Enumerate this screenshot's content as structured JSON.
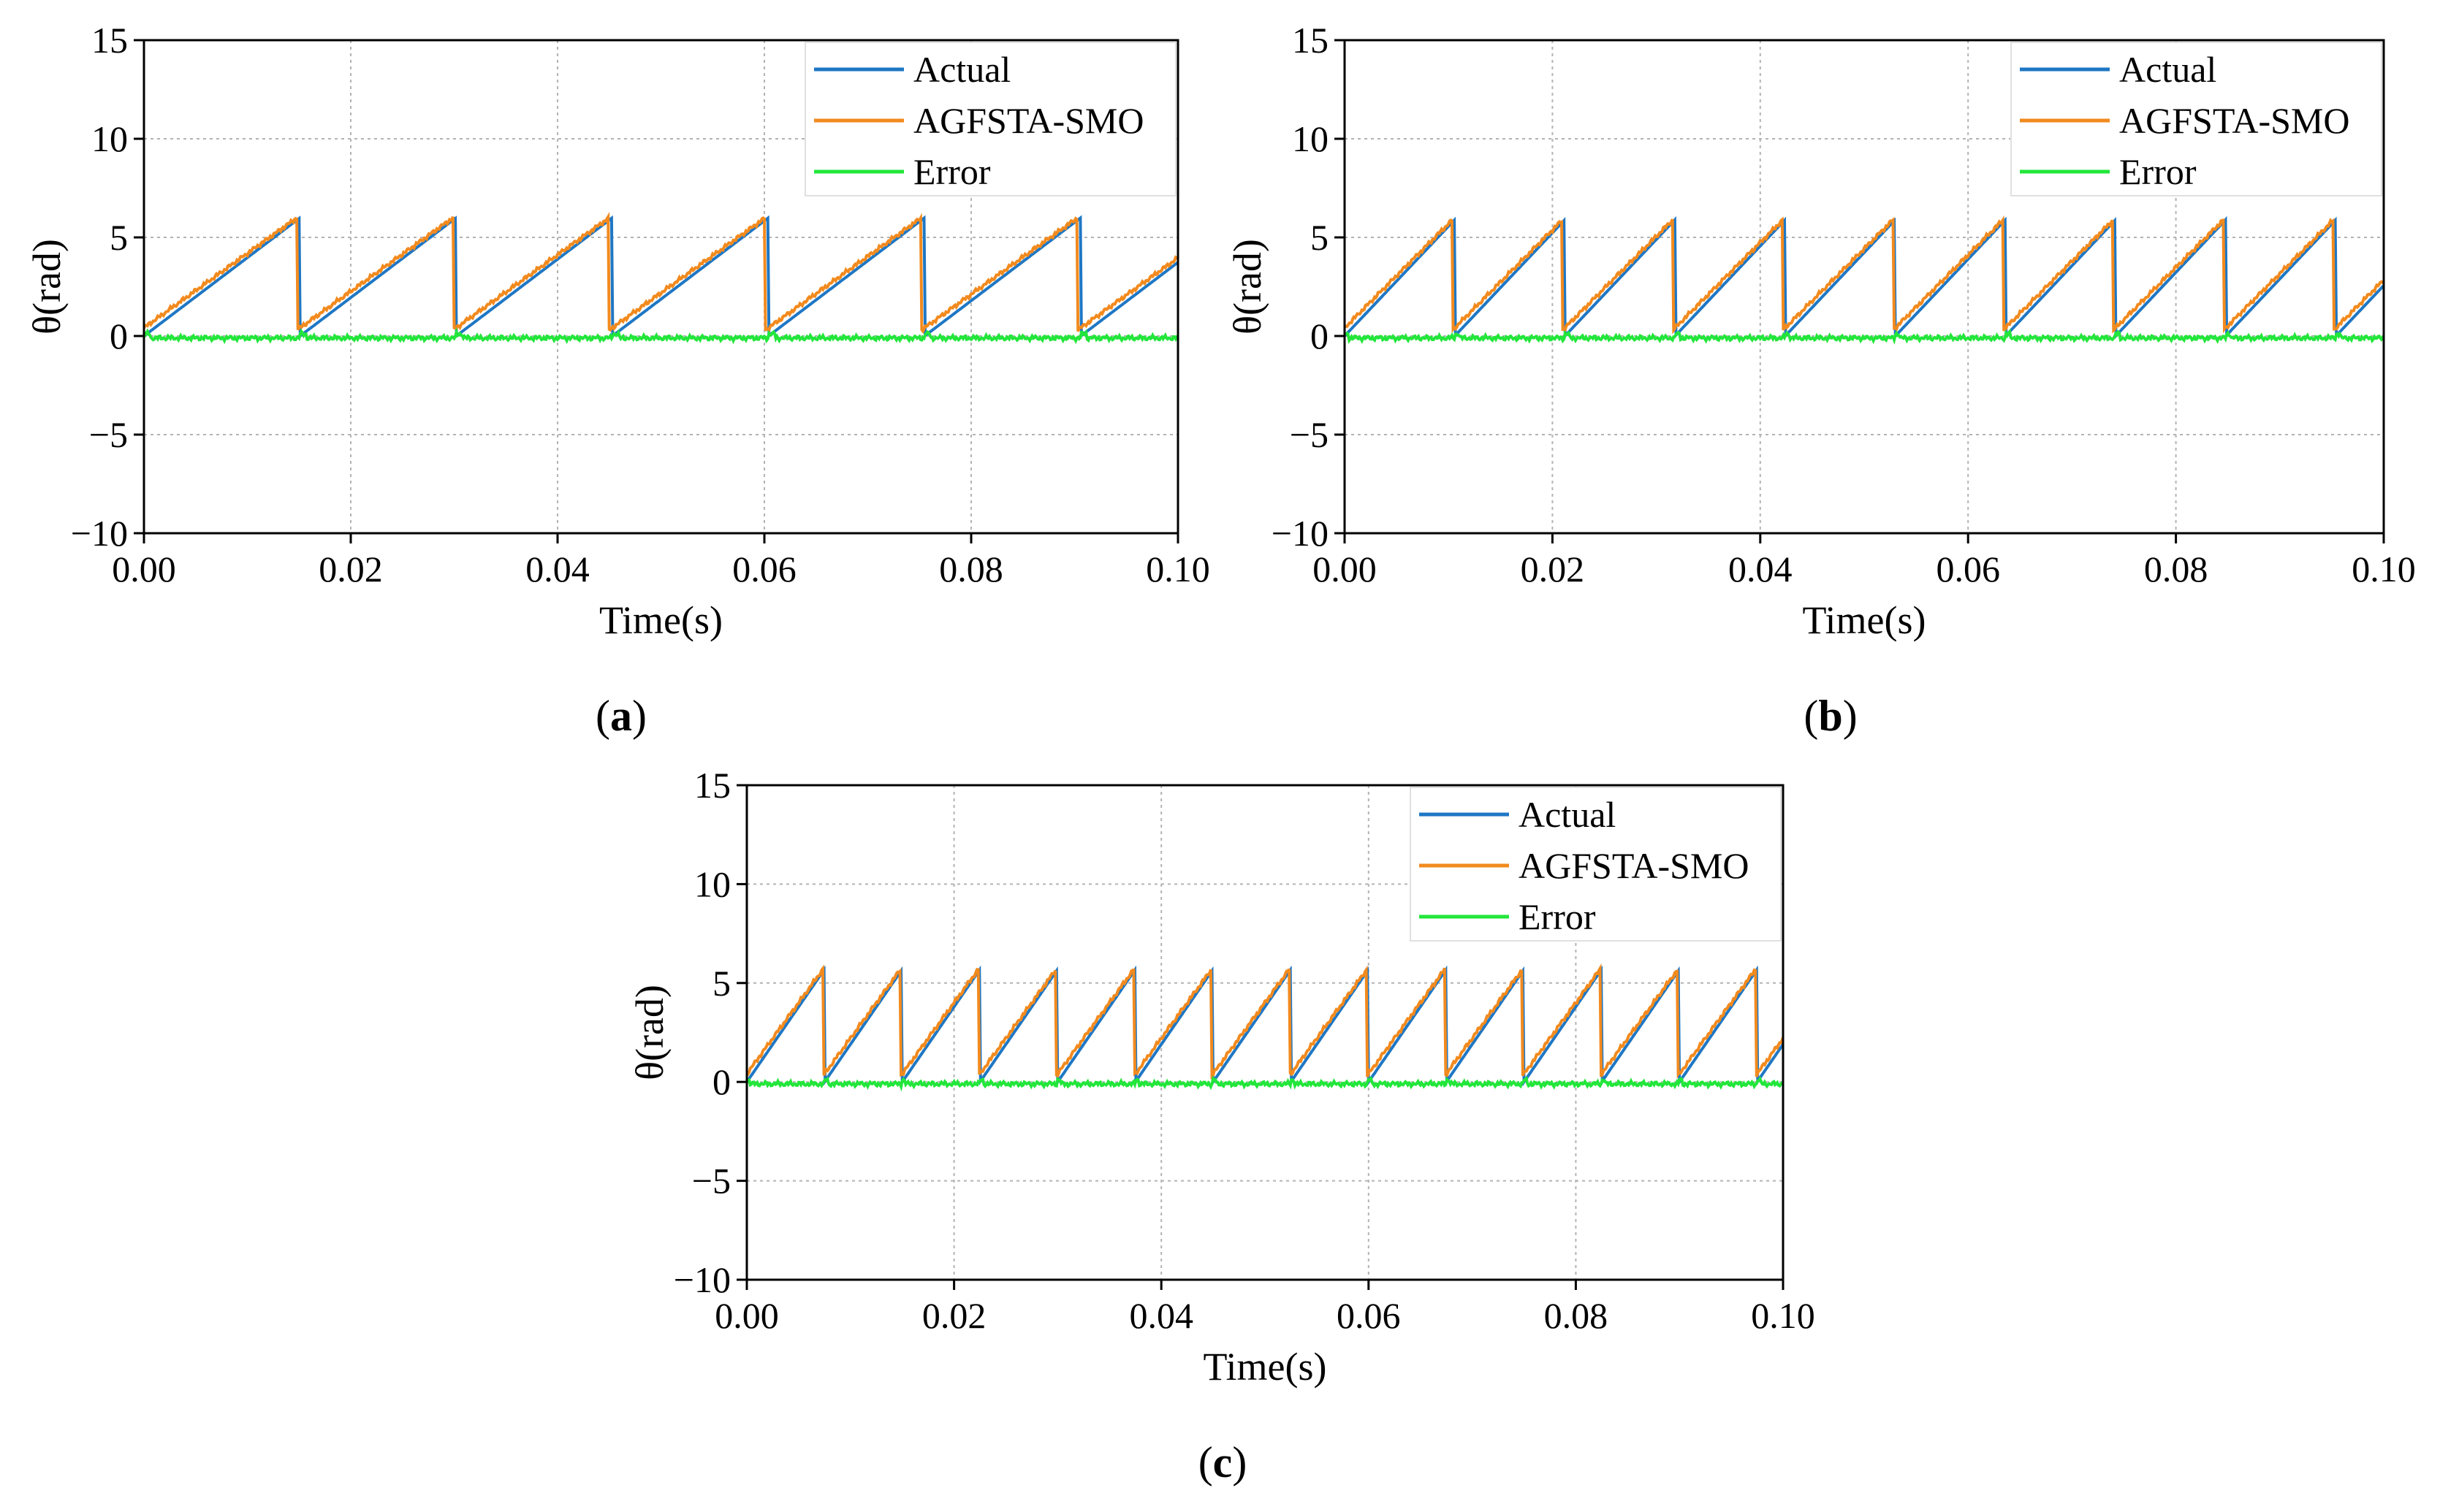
{
  "figure": {
    "labels": [
      "a",
      "b",
      "c"
    ]
  },
  "chart_data": [
    {
      "type": "line",
      "panel": "a",
      "xlabel": "Time(s)",
      "ylabel": "θ(rad)",
      "xlim": [
        0.0,
        0.1
      ],
      "ylim": [
        -10,
        15
      ],
      "xticks": [
        0.0,
        0.02,
        0.04,
        0.06,
        0.08,
        0.1
      ],
      "xtick_labels": [
        "0.00",
        "0.02",
        "0.04",
        "0.06",
        "0.08",
        "0.10"
      ],
      "yticks": [
        -10,
        -5,
        0,
        5,
        10,
        15
      ],
      "ytick_labels": [
        "−10",
        "−5",
        "0",
        "5",
        "10",
        "15"
      ],
      "grid": true,
      "legend_position": "top-right",
      "sawtooth_period": 0.0151,
      "sawtooth_peak": 6.0,
      "series": [
        {
          "name": "Actual",
          "color": "#1f77c4"
        },
        {
          "name": "AGFSTA-SMO",
          "color": "#f28a1e"
        },
        {
          "name": "Error",
          "color": "#22e63a",
          "approx_range": [
            -0.3,
            0.2
          ]
        }
      ]
    },
    {
      "type": "line",
      "panel": "b",
      "xlabel": "Time(s)",
      "ylabel": "θ(rad)",
      "xlim": [
        0.0,
        0.1
      ],
      "ylim": [
        -10,
        15
      ],
      "xticks": [
        0.0,
        0.02,
        0.04,
        0.06,
        0.08,
        0.1
      ],
      "xtick_labels": [
        "0.00",
        "0.02",
        "0.04",
        "0.06",
        "0.08",
        "0.10"
      ],
      "yticks": [
        -10,
        -5,
        0,
        5,
        10,
        15
      ],
      "ytick_labels": [
        "−10",
        "−5",
        "0",
        "5",
        "10",
        "15"
      ],
      "grid": true,
      "legend_position": "top-right",
      "sawtooth_period": 0.0106,
      "sawtooth_peak": 5.9,
      "series": [
        {
          "name": "Actual",
          "color": "#1f77c4"
        },
        {
          "name": "AGFSTA-SMO",
          "color": "#f28a1e"
        },
        {
          "name": "Error",
          "color": "#22e63a",
          "approx_range": [
            -0.3,
            0.2
          ]
        }
      ]
    },
    {
      "type": "line",
      "panel": "c",
      "xlabel": "Time(s)",
      "ylabel": "θ(rad)",
      "xlim": [
        0.0,
        0.1
      ],
      "ylim": [
        -10,
        15
      ],
      "xticks": [
        0.0,
        0.02,
        0.04,
        0.06,
        0.08,
        0.1
      ],
      "xtick_labels": [
        "0.00",
        "0.02",
        "0.04",
        "0.06",
        "0.08",
        "0.10"
      ],
      "yticks": [
        -10,
        -5,
        0,
        5,
        10,
        15
      ],
      "ytick_labels": [
        "−10",
        "−5",
        "0",
        "5",
        "10",
        "15"
      ],
      "grid": true,
      "legend_position": "top-right",
      "sawtooth_period": 0.0075,
      "sawtooth_peak": 5.7,
      "series": [
        {
          "name": "Actual",
          "color": "#1f77c4"
        },
        {
          "name": "AGFSTA-SMO",
          "color": "#f28a1e"
        },
        {
          "name": "Error",
          "color": "#22e63a",
          "approx_range": [
            -0.3,
            0.2
          ]
        }
      ]
    }
  ]
}
